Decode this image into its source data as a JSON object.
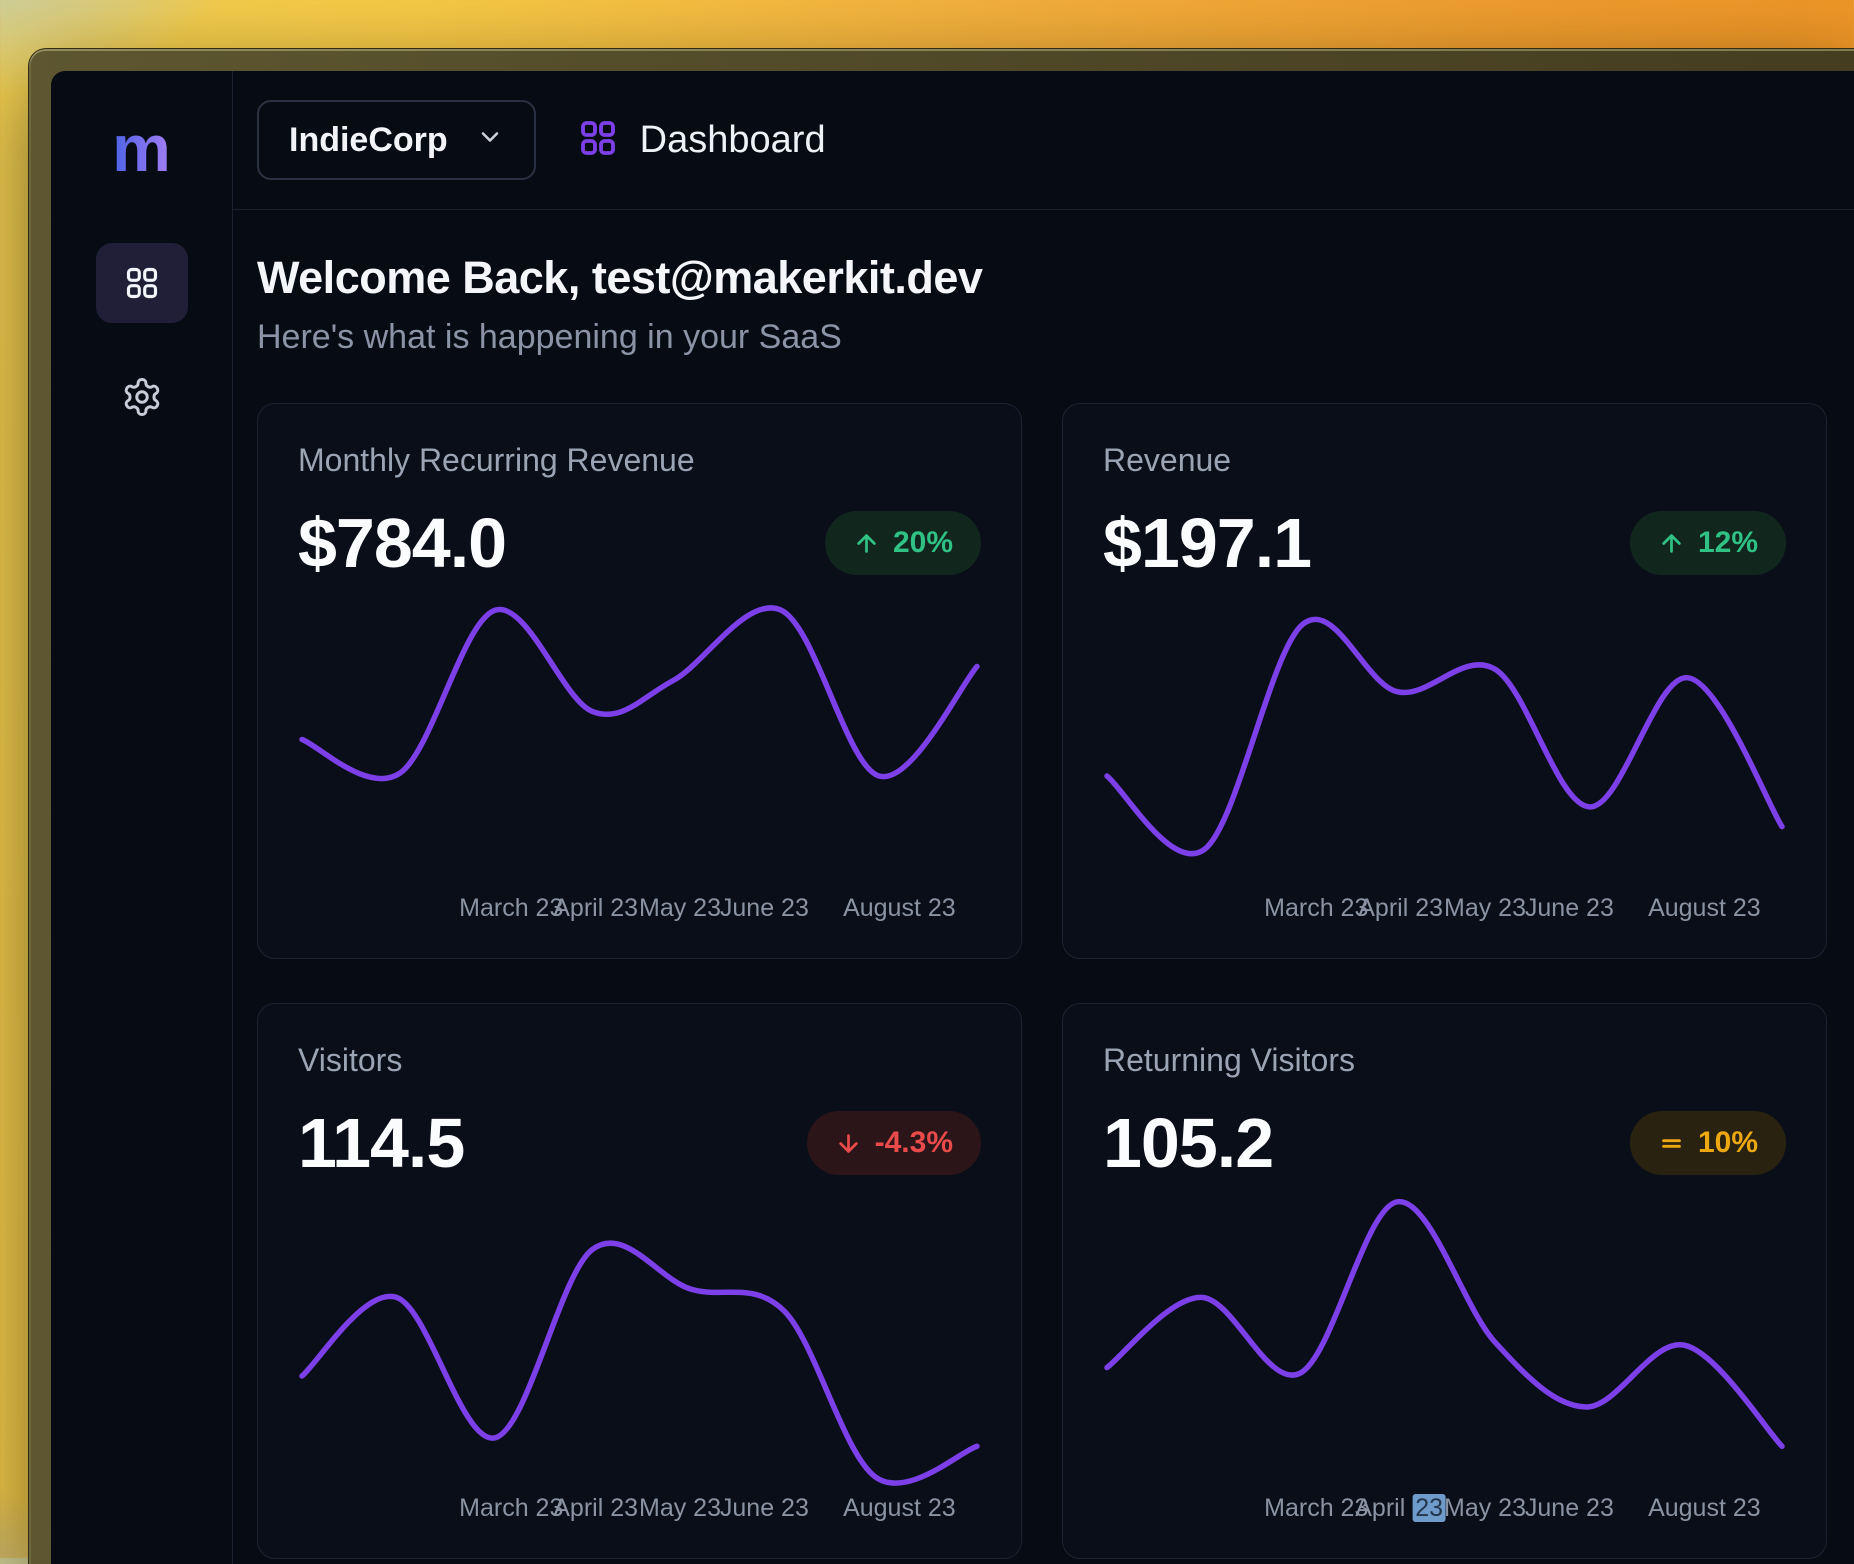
{
  "sidebar": {
    "logo": "m",
    "items": [
      {
        "name": "dashboard",
        "icon": "grid-icon",
        "active": true
      },
      {
        "name": "settings",
        "icon": "gear-icon",
        "active": false
      }
    ]
  },
  "topbar": {
    "org_label": "IndieCorp",
    "page_title": "Dashboard"
  },
  "header": {
    "title": "Welcome Back, test@makerkit.dev",
    "subtitle": "Here's what is happening in your SaaS"
  },
  "colors": {
    "accent_purple": "#7c3fe8",
    "positive_green": "#30c184",
    "negative_red": "#e94b4b",
    "neutral_amber": "#eda711",
    "selection_blue": "#6f9bcb"
  },
  "x_axis": {
    "label_positions_pct": [
      31,
      43.5,
      56,
      68.5,
      88.5
    ]
  },
  "chart_data": [
    {
      "type": "line",
      "title": "Monthly Recurring Revenue",
      "value": "$784.0",
      "trend": {
        "direction": "up",
        "label": "20%"
      },
      "line_color": "#7c3fe8",
      "x_labels": [
        "March 23",
        "April 23",
        "May 23",
        "June 23",
        "August 23"
      ],
      "points_pct": [
        [
          0,
          50
        ],
        [
          14.5,
          62
        ],
        [
          28.6,
          4
        ],
        [
          43,
          40
        ],
        [
          55,
          29
        ],
        [
          71,
          4
        ],
        [
          85.5,
          63
        ],
        [
          100,
          24
        ]
      ],
      "grid": "off",
      "legend": "none",
      "y_axis": "hidden"
    },
    {
      "type": "line",
      "title": "Revenue",
      "value": "$197.1",
      "trend": {
        "direction": "up",
        "label": "12%"
      },
      "line_color": "#7c3fe8",
      "x_labels": [
        "March 23",
        "April 23",
        "May 23",
        "June 23",
        "August 23"
      ],
      "points_pct": [
        [
          0,
          63
        ],
        [
          14.5,
          89
        ],
        [
          29,
          9
        ],
        [
          43,
          33
        ],
        [
          57.5,
          25
        ],
        [
          71.5,
          74
        ],
        [
          86,
          28
        ],
        [
          100,
          81
        ]
      ],
      "grid": "off",
      "legend": "none",
      "y_axis": "hidden"
    },
    {
      "type": "line",
      "title": "Visitors",
      "value": "114.5",
      "trend": {
        "direction": "down",
        "label": "-4.3%"
      },
      "line_color": "#7c3fe8",
      "x_labels": [
        "March 23",
        "April 23",
        "May 23",
        "June 23",
        "August 23"
      ],
      "points_pct": [
        [
          0,
          63
        ],
        [
          14,
          35
        ],
        [
          28.6,
          85
        ],
        [
          43,
          18
        ],
        [
          57.5,
          32
        ],
        [
          71.5,
          40
        ],
        [
          85,
          99
        ],
        [
          100,
          88
        ]
      ],
      "grid": "off",
      "legend": "none",
      "y_axis": "hidden"
    },
    {
      "type": "line",
      "title": "Returning Visitors",
      "value": "105.2",
      "trend": {
        "direction": "flat",
        "label": "10%"
      },
      "line_color": "#7c3fe8",
      "x_labels": [
        "March 23",
        {
          "text": "April ",
          "highlight": "23"
        },
        "May 23",
        "June 23",
        "August 23"
      ],
      "points_pct": [
        [
          0,
          60
        ],
        [
          14,
          35
        ],
        [
          28.6,
          62
        ],
        [
          43,
          1
        ],
        [
          57.5,
          51
        ],
        [
          71,
          74
        ],
        [
          85.5,
          52
        ],
        [
          100,
          88
        ]
      ],
      "grid": "off",
      "legend": "none",
      "y_axis": "hidden"
    }
  ]
}
